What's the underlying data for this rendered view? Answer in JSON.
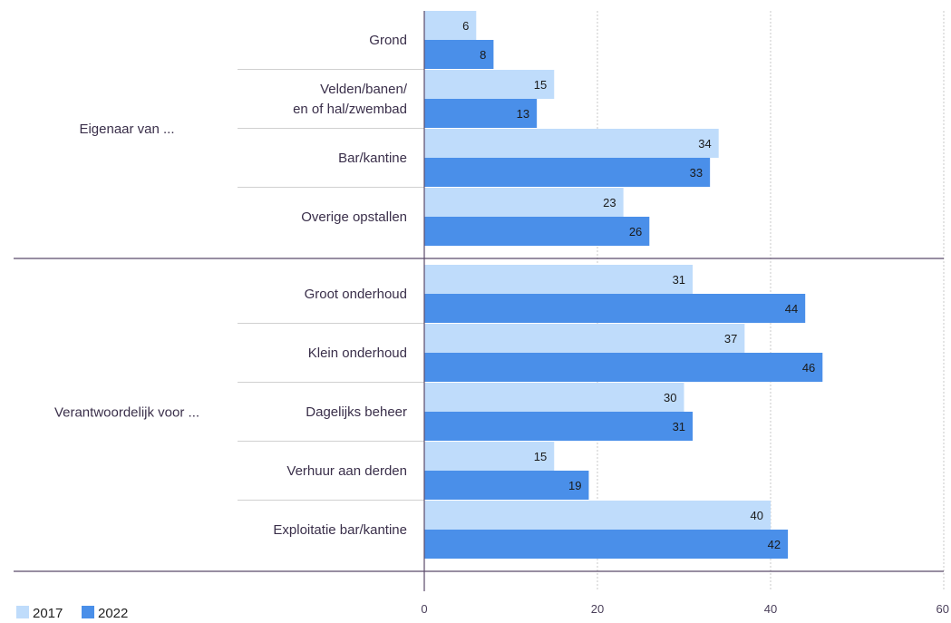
{
  "chart_data": {
    "type": "bar",
    "orientation": "horizontal",
    "xlim": [
      0,
      60
    ],
    "x_ticks": [
      "0",
      "20",
      "40",
      "60"
    ],
    "grid": true,
    "legend_position": "bottom-left",
    "series": [
      {
        "name": "2017",
        "color": "#bfdcfb"
      },
      {
        "name": "2022",
        "color": "#4a8fe9"
      }
    ],
    "groups": [
      {
        "label": "Eigenaar van ...",
        "categories": [
          {
            "label": [
              "Grond"
            ],
            "values": [
              6,
              8
            ]
          },
          {
            "label": [
              "Velden/banen/",
              "en of hal/zwembad"
            ],
            "values": [
              15,
              13
            ]
          },
          {
            "label": [
              "Bar/kantine"
            ],
            "values": [
              34,
              33
            ]
          },
          {
            "label": [
              "Overige opstallen"
            ],
            "values": [
              23,
              26
            ]
          }
        ]
      },
      {
        "label": "Verantwoordelijk voor ...",
        "categories": [
          {
            "label": [
              "Groot onderhoud"
            ],
            "values": [
              31,
              44
            ]
          },
          {
            "label": [
              "Klein onderhoud"
            ],
            "values": [
              37,
              46
            ]
          },
          {
            "label": [
              "Dagelijks beheer"
            ],
            "values": [
              30,
              31
            ]
          },
          {
            "label": [
              "Verhuur aan derden"
            ],
            "values": [
              15,
              19
            ]
          },
          {
            "label": [
              "Exploitatie bar/kantine"
            ],
            "values": [
              40,
              42
            ]
          }
        ]
      }
    ]
  }
}
